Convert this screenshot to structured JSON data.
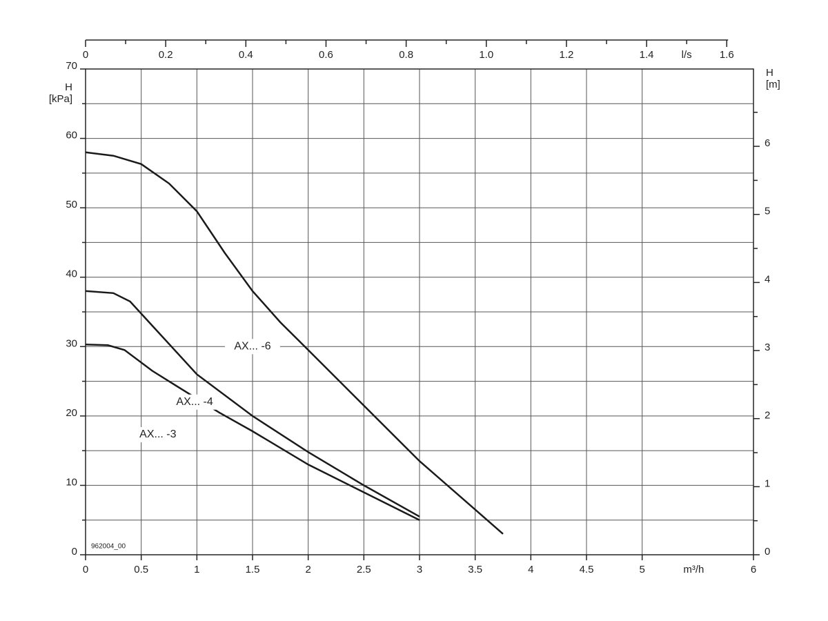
{
  "chart_data": {
    "type": "line",
    "xlabel": "m³/h",
    "x2label": "l/s",
    "ylabel": [
      "H",
      "[kPa]"
    ],
    "y2label": [
      "H",
      "[m]"
    ],
    "annotation": "962004_00",
    "xlim": [
      0,
      6
    ],
    "xticks": [
      0,
      0.5,
      1,
      1.5,
      2,
      2.5,
      3,
      3.5,
      4,
      4.5,
      5,
      6
    ],
    "ylim": [
      0,
      70
    ],
    "yticks": [
      0,
      10,
      20,
      30,
      40,
      50,
      60,
      70
    ],
    "y_minor_ticks": [
      5,
      15,
      25,
      35,
      45,
      55,
      65
    ],
    "x2lim": [
      0,
      1.6667
    ],
    "x2ticks": [
      0,
      0.2,
      0.4,
      0.6,
      0.8,
      {
        "value": 1,
        "label": "1.0"
      },
      1.2,
      1.4,
      1.6
    ],
    "x2_minor_ticks": [
      0.1,
      0.3,
      0.5,
      0.7,
      0.9,
      1.1,
      1.3,
      1.5
    ],
    "y2lim": [
      0,
      7.136
    ],
    "y2ticks": [
      0,
      1,
      2,
      3,
      4,
      5,
      6
    ],
    "y2_minor_ticks": [
      0.5,
      1.5,
      2.5,
      3.5,
      4.5,
      5.5,
      6.5
    ],
    "grid": true,
    "color": "#1a1a1a",
    "series": [
      {
        "name": "AX... -6",
        "x": [
          0,
          0.25,
          0.5,
          0.75,
          1,
          1.25,
          1.5,
          1.75,
          2,
          2.5,
          3,
          3.5,
          3.75
        ],
        "values": [
          58,
          57.5,
          56.3,
          53.5,
          49.5,
          43.5,
          38,
          33.5,
          29.5,
          21.5,
          13.5,
          6.5,
          3
        ]
      },
      {
        "name": "AX... -4",
        "x": [
          0,
          0.25,
          0.4,
          0.6,
          0.8,
          1,
          1.5,
          2,
          2.5,
          3
        ],
        "values": [
          38,
          37.7,
          36.5,
          33,
          29.5,
          26,
          20,
          14.8,
          10,
          5.5
        ]
      },
      {
        "name": "AX... -3",
        "x": [
          0,
          0.2,
          0.35,
          0.6,
          0.9,
          1.2,
          1.5,
          2,
          2.5,
          3
        ],
        "values": [
          30.3,
          30.2,
          29.5,
          26.5,
          23.5,
          20.5,
          17.8,
          13,
          9,
          5
        ]
      }
    ]
  }
}
